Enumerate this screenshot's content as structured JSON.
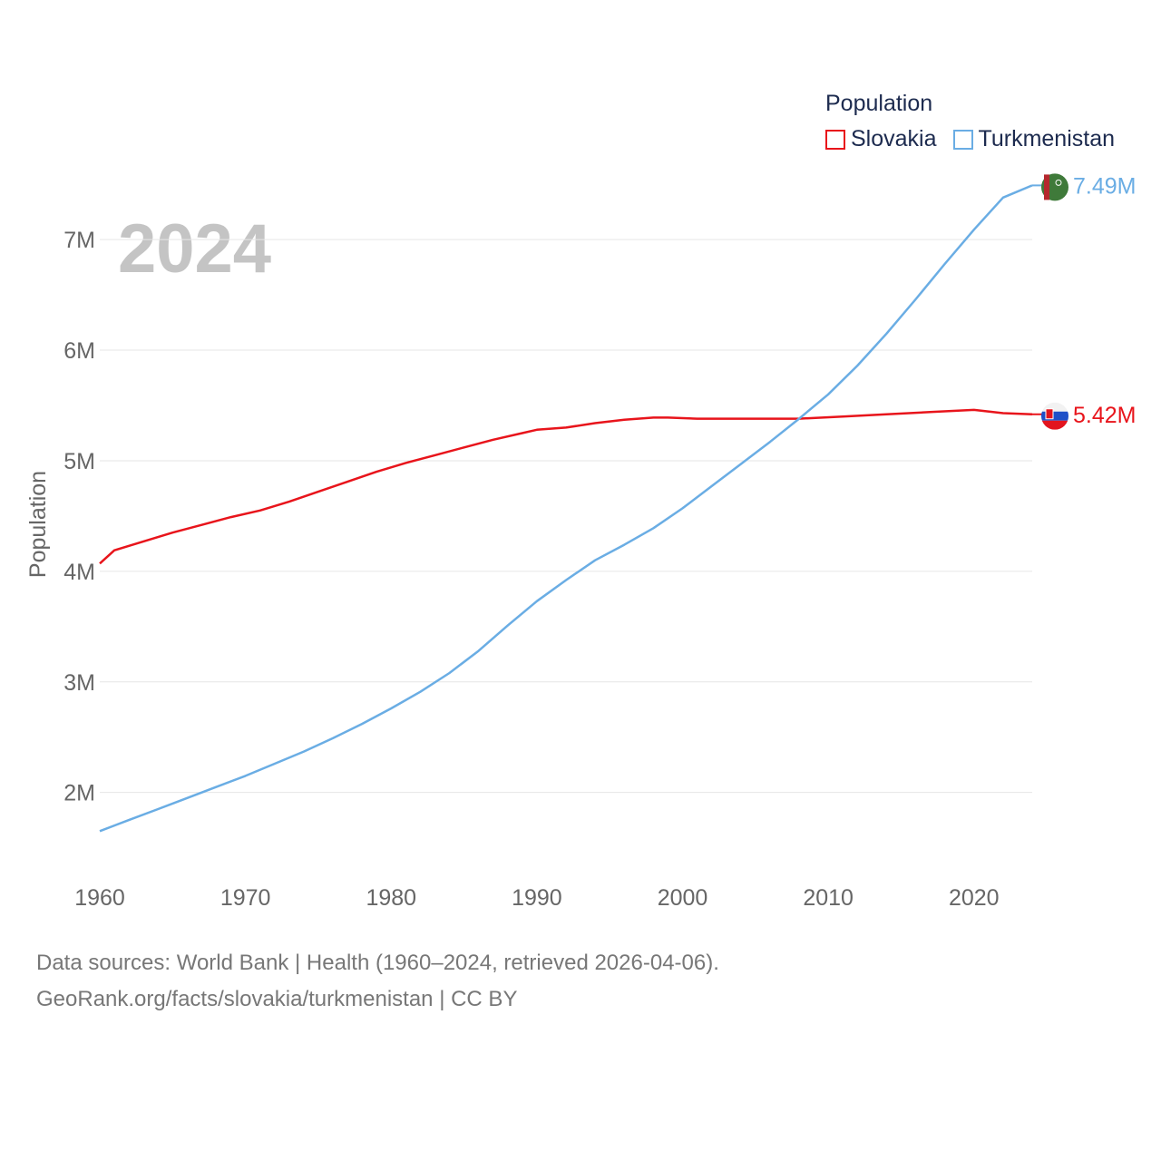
{
  "legend": {
    "title": "Population",
    "items": [
      {
        "name": "Slovakia",
        "color": "#e8141b"
      },
      {
        "name": "Turkmenistan",
        "color": "#6aade4"
      }
    ]
  },
  "year_label": "2024",
  "footer": {
    "line1": "Data sources: World Bank | Health (1960–2024, retrieved 2026-04-06).",
    "line2": "GeoRank.org/facts/slovakia/turkmenistan | CC BY"
  },
  "chart_data": {
    "type": "line",
    "ylabel": "Population",
    "xlabel": "",
    "xlim": [
      1960,
      2024
    ],
    "ylim": [
      1.3,
      7.6
    ],
    "x_ticks": [
      1960,
      1970,
      1980,
      1990,
      2000,
      2010,
      2020
    ],
    "y_ticks": [
      {
        "value": 2,
        "label": "2M"
      },
      {
        "value": 3,
        "label": "3M"
      },
      {
        "value": 4,
        "label": "4M"
      },
      {
        "value": 5,
        "label": "5M"
      },
      {
        "value": 6,
        "label": "6M"
      },
      {
        "value": 7,
        "label": "7M"
      }
    ],
    "series": [
      {
        "name": "Slovakia",
        "color": "#e8141b",
        "end_label": "5.42M",
        "points": [
          [
            1960,
            4.07
          ],
          [
            1961,
            4.19
          ],
          [
            1963,
            4.27
          ],
          [
            1965,
            4.35
          ],
          [
            1967,
            4.42
          ],
          [
            1969,
            4.49
          ],
          [
            1971,
            4.55
          ],
          [
            1973,
            4.63
          ],
          [
            1975,
            4.72
          ],
          [
            1977,
            4.81
          ],
          [
            1979,
            4.9
          ],
          [
            1981,
            4.98
          ],
          [
            1983,
            5.05
          ],
          [
            1985,
            5.12
          ],
          [
            1987,
            5.19
          ],
          [
            1989,
            5.25
          ],
          [
            1990,
            5.28
          ],
          [
            1992,
            5.3
          ],
          [
            1994,
            5.34
          ],
          [
            1996,
            5.37
          ],
          [
            1998,
            5.39
          ],
          [
            1999,
            5.39
          ],
          [
            2001,
            5.38
          ],
          [
            2004,
            5.38
          ],
          [
            2008,
            5.38
          ],
          [
            2011,
            5.4
          ],
          [
            2014,
            5.42
          ],
          [
            2017,
            5.44
          ],
          [
            2020,
            5.46
          ],
          [
            2022,
            5.43
          ],
          [
            2024,
            5.42
          ]
        ]
      },
      {
        "name": "Turkmenistan",
        "color": "#6aade4",
        "end_label": "7.49M",
        "points": [
          [
            1960,
            1.65
          ],
          [
            1962,
            1.75
          ],
          [
            1964,
            1.85
          ],
          [
            1966,
            1.95
          ],
          [
            1968,
            2.05
          ],
          [
            1970,
            2.15
          ],
          [
            1972,
            2.26
          ],
          [
            1974,
            2.37
          ],
          [
            1976,
            2.49
          ],
          [
            1978,
            2.62
          ],
          [
            1980,
            2.76
          ],
          [
            1982,
            2.91
          ],
          [
            1984,
            3.08
          ],
          [
            1986,
            3.28
          ],
          [
            1988,
            3.51
          ],
          [
            1990,
            3.73
          ],
          [
            1992,
            3.92
          ],
          [
            1994,
            4.1
          ],
          [
            1996,
            4.24
          ],
          [
            1998,
            4.39
          ],
          [
            2000,
            4.57
          ],
          [
            2002,
            4.77
          ],
          [
            2004,
            4.97
          ],
          [
            2006,
            5.17
          ],
          [
            2008,
            5.38
          ],
          [
            2010,
            5.6
          ],
          [
            2012,
            5.86
          ],
          [
            2014,
            6.15
          ],
          [
            2016,
            6.46
          ],
          [
            2018,
            6.78
          ],
          [
            2020,
            7.09
          ],
          [
            2022,
            7.38
          ],
          [
            2024,
            7.49
          ]
        ]
      }
    ]
  }
}
